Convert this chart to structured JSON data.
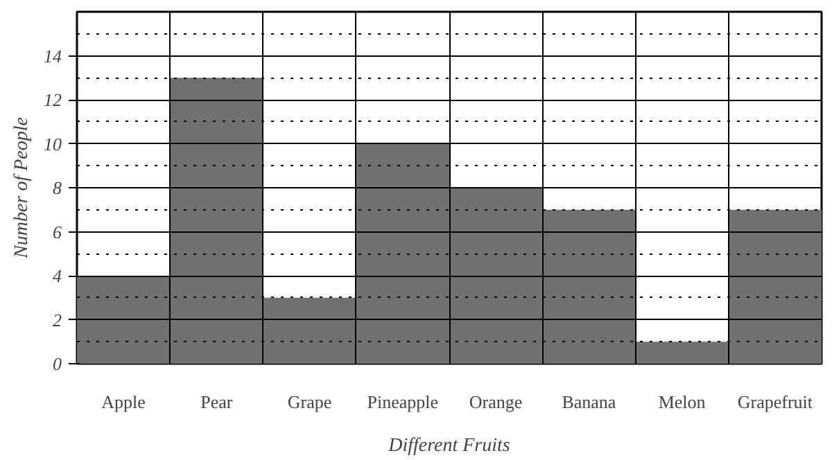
{
  "chart_data": {
    "type": "bar",
    "xlabel": "Different Fruits",
    "ylabel": "Number of People",
    "categories": [
      "Apple",
      "Pear",
      "Grape",
      "Pineapple",
      "Orange",
      "Banana",
      "Melon",
      "Grapefruit"
    ],
    "values": [
      4,
      13,
      3,
      10,
      8,
      7,
      1,
      7
    ],
    "color": "#707070",
    "ylim": [
      0,
      16
    ],
    "yticks": [
      0,
      2,
      4,
      6,
      8,
      10,
      12,
      14
    ],
    "grid": true
  }
}
